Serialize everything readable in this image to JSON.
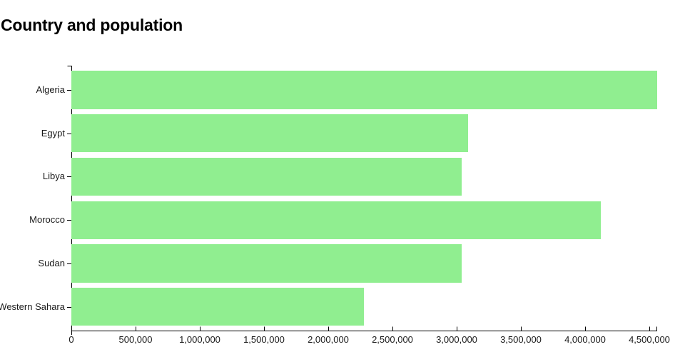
{
  "chart_data": {
    "type": "bar",
    "orientation": "horizontal",
    "title": "Country and population",
    "xlabel": "",
    "ylabel": "",
    "categories": [
      "Algeria",
      "Egypt",
      "Libya",
      "Morocco",
      "Sudan",
      "Western Sahara"
    ],
    "values": [
      4560000,
      3090000,
      3040000,
      4120000,
      3040000,
      2275000
    ],
    "xlim": [
      0,
      4560000
    ],
    "x_ticks": [
      0,
      500000,
      1000000,
      1500000,
      2000000,
      2500000,
      3000000,
      3500000,
      4000000,
      4500000
    ],
    "x_tick_labels": [
      "0",
      "500,000",
      "1,000,000",
      "1,500,000",
      "2,000,000",
      "2,500,000",
      "3,000,000",
      "3,500,000",
      "4,000,000",
      "4,500,000"
    ],
    "grid": false,
    "legend": false,
    "bar_color": "#90ee90",
    "axis_color": "#000000",
    "label_color": "#1a1a1a",
    "background_color": "#ffffff"
  }
}
